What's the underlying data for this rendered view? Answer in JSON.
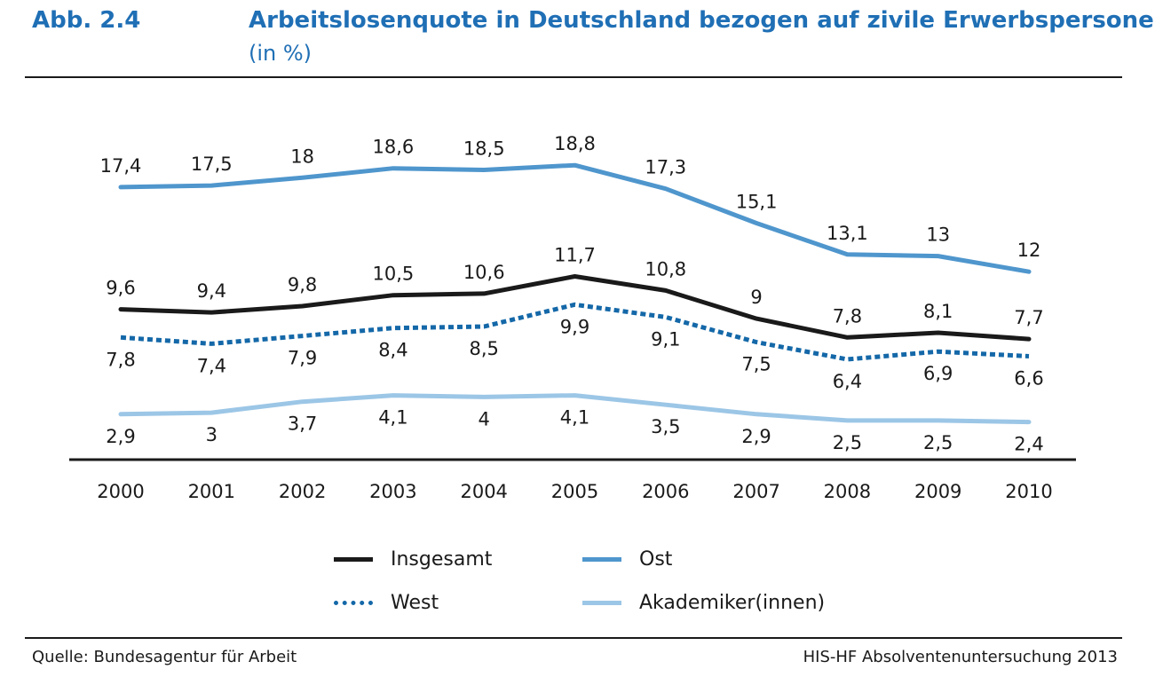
{
  "header": {
    "figure_label": "Abb. 2.4",
    "title": "Arbeitslosenquote in Deutschland bezogen auf zivile Erwerbspersonen",
    "subtitle": "(in %)"
  },
  "footer": {
    "source": "Quelle: Bundesagentur für Arbeit",
    "credit": "HIS-HF Absolventenuntersuchung 2013"
  },
  "chart_data": {
    "type": "line",
    "title": "Arbeitslosenquote in Deutschland bezogen auf zivile Erwerbspersonen",
    "xlabel": "",
    "ylabel": "",
    "grid": false,
    "legend_position": "bottom",
    "categories": [
      "2000",
      "2001",
      "2002",
      "2003",
      "2004",
      "2005",
      "2006",
      "2007",
      "2008",
      "2009",
      "2010"
    ],
    "series": [
      {
        "name": "Ost",
        "color": "#4f96cd",
        "style": "solid",
        "values": [
          17.4,
          17.5,
          18,
          18.6,
          18.5,
          18.8,
          17.3,
          15.1,
          13.1,
          13,
          12
        ],
        "labels": [
          "17,4",
          "17,5",
          "18",
          "18,6",
          "18,5",
          "18,8",
          "17,3",
          "15,1",
          "13,1",
          "13",
          "12"
        ]
      },
      {
        "name": "Insgesamt",
        "color": "#1a1a1a",
        "style": "solid",
        "values": [
          9.6,
          9.4,
          9.8,
          10.5,
          10.6,
          11.7,
          10.8,
          9,
          7.8,
          8.1,
          7.7
        ],
        "labels": [
          "9,6",
          "9,4",
          "9,8",
          "10,5",
          "10,6",
          "11,7",
          "10,8",
          "9",
          "7,8",
          "8,1",
          "7,7"
        ]
      },
      {
        "name": "West",
        "color": "#1468a8",
        "style": "dotted",
        "values": [
          7.8,
          7.4,
          7.9,
          8.4,
          8.5,
          9.9,
          9.1,
          7.5,
          6.4,
          6.9,
          6.6
        ],
        "labels": [
          "7,8",
          "7,4",
          "7,9",
          "8,4",
          "8,5",
          "9,9",
          "9,1",
          "7,5",
          "6,4",
          "6,9",
          "6,6"
        ]
      },
      {
        "name": "Akademiker(innen)",
        "color": "#9cc6e6",
        "style": "solid",
        "values": [
          2.9,
          3,
          3.7,
          4.1,
          4,
          4.1,
          3.5,
          2.9,
          2.5,
          2.5,
          2.4
        ],
        "labels": [
          "2,9",
          "3",
          "3,7",
          "4,1",
          "4",
          "4,1",
          "3,5",
          "2,9",
          "2,5",
          "2,5",
          "2,4"
        ]
      }
    ]
  }
}
